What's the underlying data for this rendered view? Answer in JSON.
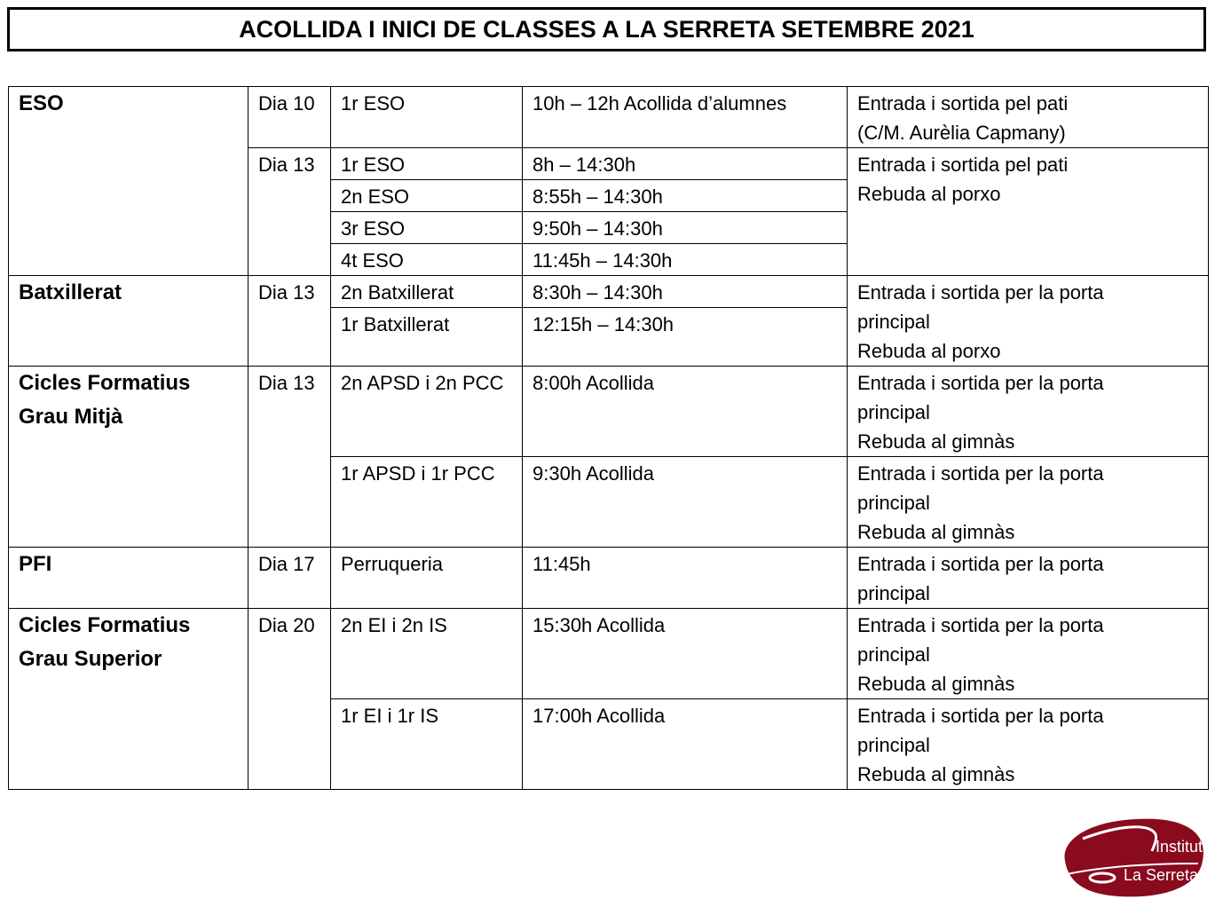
{
  "title": "ACOLLIDA I INICI DE CLASSES A LA SERRETA  SETEMBRE 2021",
  "rows": [
    {
      "group": [
        "ESO"
      ],
      "group_span": 5,
      "day": "Dia 10",
      "day_span": 1,
      "course": "1r ESO",
      "time": "10h – 12h Acollida d’alumnes",
      "notes": [
        "Entrada i sortida pel pati",
        "(C/M. Aurèlia Capmany)"
      ],
      "notes_span": 1
    },
    {
      "day": "Dia 13",
      "day_span": 4,
      "course": "1r ESO",
      "time": "8h – 14:30h",
      "notes": [
        "Entrada i sortida pel pati",
        "Rebuda al porxo"
      ],
      "notes_span": 4
    },
    {
      "course": "2n ESO",
      "time": "8:55h – 14:30h"
    },
    {
      "course": "3r ESO",
      "time": "9:50h – 14:30h"
    },
    {
      "course": "4t ESO",
      "time": "11:45h – 14:30h"
    },
    {
      "group": [
        "Batxillerat"
      ],
      "group_span": 2,
      "day": "Dia 13",
      "day_span": 2,
      "course": "2n  Batxillerat",
      "time": "8:30h – 14:30h",
      "notes": [
        "Entrada i sortida per la porta",
        "principal",
        "Rebuda al porxo"
      ],
      "notes_span": 2
    },
    {
      "course": "1r Batxillerat",
      "time": "12:15h – 14:30h"
    },
    {
      "group": [
        "Cicles Formatius",
        "Grau Mitjà"
      ],
      "group_span": 2,
      "day": "Dia 13",
      "day_span": 2,
      "course": "2n APSD i 2n PCC",
      "time": "8:00h Acollida",
      "notes": [
        "Entrada i sortida per la porta",
        "principal",
        "Rebuda al gimnàs"
      ],
      "notes_span": 1
    },
    {
      "course": "1r APSD i 1r PCC",
      "time": "9:30h Acollida",
      "notes": [
        "Entrada i sortida per la porta",
        "principal",
        "Rebuda al gimnàs"
      ],
      "notes_span": 1
    },
    {
      "group": [
        "PFI"
      ],
      "group_span": 1,
      "day": "Dia 17",
      "day_span": 1,
      "course": "Perruqueria",
      "time": "11:45h",
      "notes": [
        "Entrada i sortida per la porta",
        "principal"
      ],
      "notes_span": 1
    },
    {
      "group": [
        "Cicles Formatius",
        "Grau Superior"
      ],
      "group_span": 2,
      "day": "Dia 20",
      "day_span": 2,
      "course": "2n EI i 2n IS",
      "time": "15:30h Acollida",
      "notes": [
        "Entrada i sortida per la porta",
        "principal",
        "Rebuda al gimnàs"
      ],
      "notes_span": 1
    },
    {
      "course": "1r EI i 1r IS",
      "time": "17:00h Acollida",
      "notes": [
        "Entrada i sortida per la porta",
        "principal",
        "Rebuda al gimnàs"
      ],
      "notes_span": 1
    }
  ],
  "logo": {
    "line1": "Institut",
    "line2": "La Serreta",
    "color": "#8a0a1e"
  }
}
